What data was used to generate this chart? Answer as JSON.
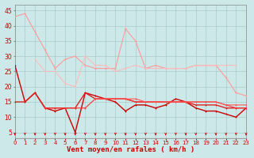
{
  "xlabel": "Vent moyen/en rafales ( km/h )",
  "background_color": "#cce8e8",
  "grid_color": "#aacccc",
  "x": [
    0,
    1,
    2,
    3,
    4,
    5,
    6,
    7,
    8,
    9,
    10,
    11,
    12,
    13,
    14,
    15,
    16,
    17,
    18,
    19,
    20,
    21,
    22,
    23
  ],
  "series": [
    {
      "y": [
        43,
        44,
        38,
        32,
        26,
        29,
        30,
        27,
        26,
        26,
        26,
        39,
        35,
        26,
        27,
        26,
        26,
        26,
        27,
        27,
        27,
        23,
        18,
        17
      ],
      "color": "#ff9999",
      "lw": 0.8,
      "marker": "+"
    },
    {
      "y": [
        null,
        null,
        29,
        25,
        25,
        21,
        20,
        30,
        27,
        27,
        25,
        26,
        27,
        26,
        26,
        26,
        26,
        26,
        27,
        27,
        27,
        27,
        27,
        null
      ],
      "color": "#ffbbbb",
      "lw": 0.8,
      "marker": "+"
    },
    {
      "y": [
        27,
        15,
        18,
        13,
        12,
        13,
        5,
        18,
        17,
        16,
        15,
        12,
        14,
        14,
        13,
        14,
        16,
        15,
        13,
        12,
        12,
        11,
        10,
        13
      ],
      "color": "#cc0000",
      "lw": 1.0,
      "marker": "+"
    },
    {
      "y": [
        15,
        15,
        18,
        13,
        13,
        13,
        13,
        18,
        16,
        16,
        16,
        16,
        15,
        15,
        15,
        15,
        15,
        15,
        14,
        14,
        14,
        13,
        13,
        13
      ],
      "color": "#dd2222",
      "lw": 1.0,
      "marker": "+"
    },
    {
      "y": [
        null,
        null,
        null,
        13,
        13,
        13,
        13,
        13,
        16,
        16,
        16,
        16,
        15,
        15,
        15,
        15,
        15,
        15,
        15,
        15,
        15,
        14,
        13,
        13
      ],
      "color": "#ff3333",
      "lw": 0.8,
      "marker": "+"
    },
    {
      "y": [
        null,
        null,
        null,
        null,
        null,
        null,
        null,
        null,
        16,
        16,
        16,
        16,
        16,
        15,
        15,
        15,
        15,
        15,
        15,
        15,
        15,
        14,
        14,
        14
      ],
      "color": "#ff5555",
      "lw": 0.8,
      "marker": "+"
    }
  ],
  "ylim": [
    3,
    47
  ],
  "xlim": [
    0,
    23
  ],
  "yticks": [
    5,
    10,
    15,
    20,
    25,
    30,
    35,
    40,
    45
  ],
  "xticks": [
    0,
    1,
    2,
    3,
    4,
    5,
    6,
    7,
    8,
    9,
    10,
    11,
    12,
    13,
    14,
    15,
    16,
    17,
    18,
    19,
    20,
    21,
    22,
    23
  ],
  "tick_fontsize": 5,
  "xlabel_fontsize": 6.5,
  "ytick_fontsize": 5.5
}
